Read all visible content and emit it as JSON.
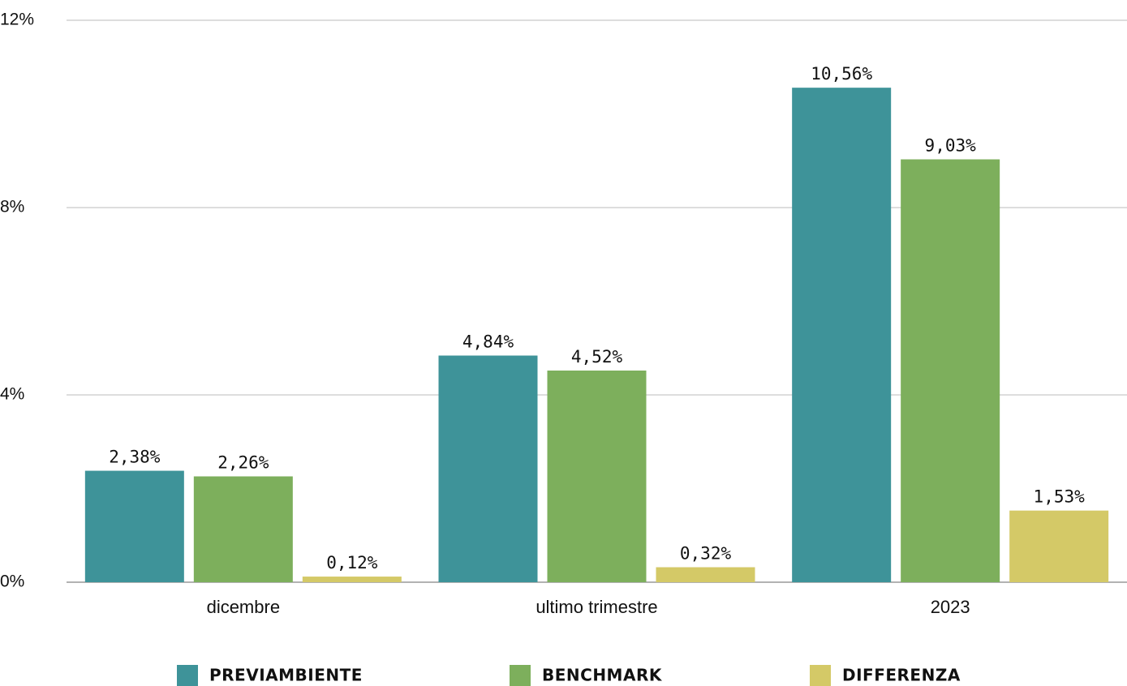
{
  "chart_data": {
    "type": "bar",
    "categories": [
      "dicembre",
      "ultimo trimestre",
      "2023"
    ],
    "series": [
      {
        "name": "PREVIAMBIENTE",
        "color": "#3e9399",
        "values": [
          2.38,
          4.84,
          10.56
        ],
        "value_labels": [
          "2,38%",
          "4,84%",
          "10,56%"
        ]
      },
      {
        "name": "BENCHMARK",
        "color": "#7daf5c",
        "values": [
          2.26,
          4.52,
          9.03
        ],
        "value_labels": [
          "2,26%",
          "4,52%",
          "9,03%"
        ]
      },
      {
        "name": "DIFFERENZA",
        "color": "#d4c967",
        "values": [
          0.12,
          0.32,
          1.53
        ],
        "value_labels": [
          "0,12%",
          "0,32%",
          "1,53%"
        ]
      }
    ],
    "ylim": [
      0,
      12
    ],
    "yticks": [
      {
        "value": 0,
        "label": "0%"
      },
      {
        "value": 4,
        "label": "4%"
      },
      {
        "value": 8,
        "label": "8%"
      },
      {
        "value": 12,
        "label": "12%"
      }
    ],
    "grid": true,
    "legend": "bottom"
  }
}
